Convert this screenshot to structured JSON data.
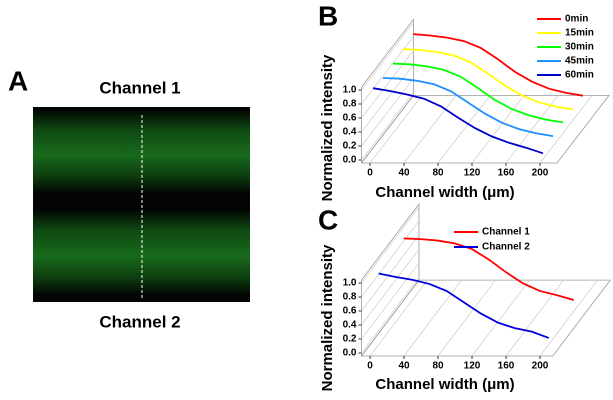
{
  "panel_a": {
    "label": "A",
    "top_label": "Channel 1",
    "bottom_label": "Channel 2"
  },
  "chart_data": [
    {
      "type": "line3d",
      "label": "B",
      "x_label": "Channel width (μm)",
      "y_label": "Normalized intensity",
      "xlim": [
        -10,
        220
      ],
      "xticks": [
        0,
        40,
        80,
        120,
        160,
        200
      ],
      "ylim": [
        0,
        1
      ],
      "yticks": [
        {
          "value": 0,
          "label": "0.0"
        },
        0.2,
        0.4,
        0.6,
        0.8,
        {
          "value": 1,
          "label": "1.0"
        }
      ],
      "x": [
        0,
        20,
        40,
        60,
        80,
        100,
        120,
        140,
        160,
        180,
        200
      ],
      "series": [
        {
          "name": "0min",
          "color": "#ff0000",
          "values": [
            1.0,
            0.98,
            0.95,
            0.9,
            0.8,
            0.64,
            0.46,
            0.32,
            0.22,
            0.16,
            0.12
          ]
        },
        {
          "name": "15min",
          "color": "#ffff00",
          "values": [
            0.97,
            0.96,
            0.93,
            0.88,
            0.78,
            0.62,
            0.45,
            0.31,
            0.21,
            0.15,
            0.11
          ]
        },
        {
          "name": "30min",
          "color": "#00ff00",
          "values": [
            0.95,
            0.94,
            0.91,
            0.86,
            0.76,
            0.6,
            0.43,
            0.3,
            0.21,
            0.15,
            0.11
          ]
        },
        {
          "name": "45min",
          "color": "#1e90ff",
          "values": [
            0.93,
            0.92,
            0.89,
            0.84,
            0.74,
            0.58,
            0.42,
            0.29,
            0.2,
            0.14,
            0.1
          ]
        },
        {
          "name": "60min",
          "color": "#0000cc",
          "values": [
            0.97,
            0.93,
            0.88,
            0.82,
            0.71,
            0.55,
            0.4,
            0.28,
            0.19,
            0.12,
            0.04
          ]
        }
      ]
    },
    {
      "type": "line3d",
      "label": "C",
      "x_label": "Channel width (μm)",
      "y_label": "Normalized intensity",
      "xlim": [
        -10,
        215
      ],
      "xticks": [
        0,
        40,
        80,
        120,
        160,
        200
      ],
      "ylim": [
        0,
        1
      ],
      "yticks": [
        {
          "value": 0,
          "label": "0.0"
        },
        0.2,
        0.4,
        0.6,
        0.8,
        {
          "value": 1,
          "label": "1.0"
        }
      ],
      "x": [
        0,
        20,
        40,
        60,
        80,
        100,
        120,
        140,
        160,
        180,
        200
      ],
      "series": [
        {
          "name": "Channel 1",
          "color": "#ff0000",
          "values": [
            1.0,
            0.99,
            0.97,
            0.93,
            0.85,
            0.7,
            0.52,
            0.36,
            0.25,
            0.19,
            0.12
          ]
        },
        {
          "name": "Channel 2",
          "color": "#0000dd",
          "values": [
            0.97,
            0.92,
            0.88,
            0.82,
            0.72,
            0.56,
            0.4,
            0.27,
            0.19,
            0.14,
            0.05
          ]
        }
      ]
    }
  ]
}
